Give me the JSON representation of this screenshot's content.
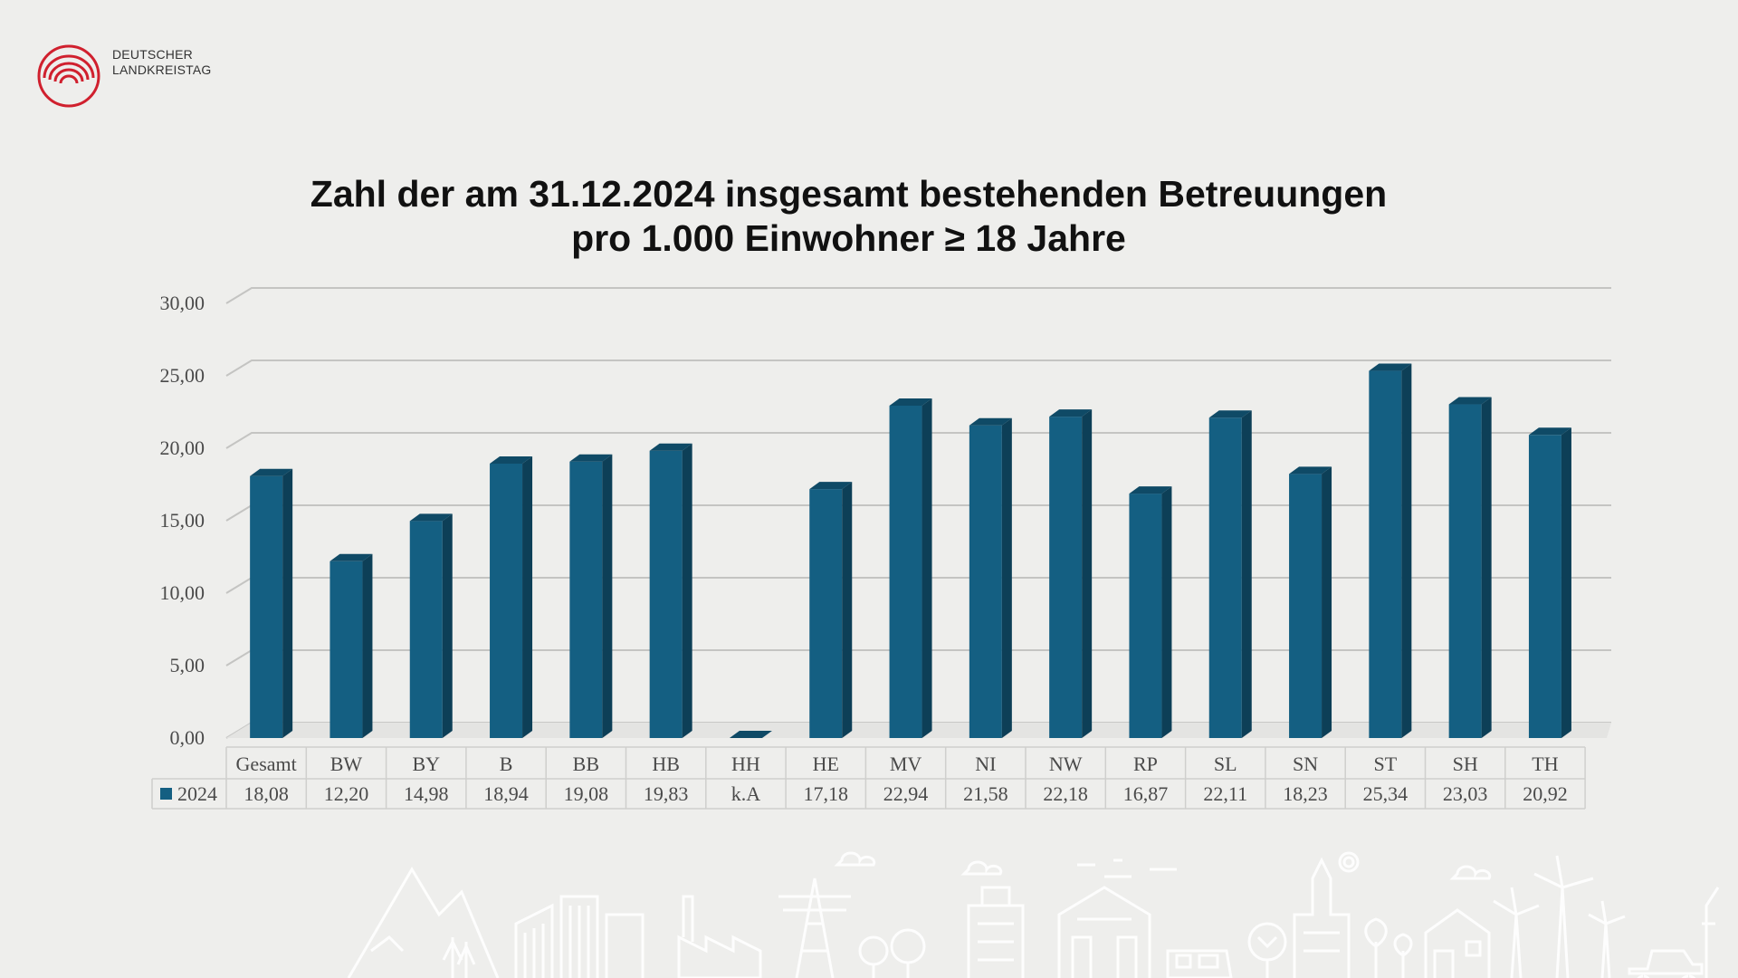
{
  "logo": {
    "line1": "DEUTSCHER",
    "line2": "LANDKREISTAG",
    "color": "#d0202e"
  },
  "chart_data": {
    "type": "bar",
    "title_line1": "Zahl der am 31.12.2024 insgesamt bestehenden Betreuungen",
    "title_line2": "pro 1.000 Einwohner ≥ 18 Jahre",
    "categories": [
      "Gesamt",
      "BW",
      "BY",
      "B",
      "BB",
      "HB",
      "HH",
      "HE",
      "MV",
      "NI",
      "NW",
      "RP",
      "SL",
      "SN",
      "ST",
      "SH",
      "TH"
    ],
    "series": [
      {
        "name": "2024",
        "values": [
          18.08,
          12.2,
          14.98,
          18.94,
          19.08,
          19.83,
          0,
          17.18,
          22.94,
          21.58,
          22.18,
          16.87,
          22.11,
          18.23,
          25.34,
          23.03,
          20.92
        ],
        "labels": [
          "18,08",
          "12,20",
          "14,98",
          "18,94",
          "19,08",
          "19,83",
          "k.A",
          "17,18",
          "22,94",
          "21,58",
          "22,18",
          "16,87",
          "22,11",
          "18,23",
          "25,34",
          "23,03",
          "20,92"
        ],
        "color": "#145f82"
      }
    ],
    "ylim": [
      0,
      30
    ],
    "yticks": [
      "0,00",
      "5,00",
      "10,00",
      "15,00",
      "20,00",
      "25,00",
      "30,00"
    ],
    "grid": true,
    "legend": "data-table",
    "xlabel": "",
    "ylabel": ""
  }
}
